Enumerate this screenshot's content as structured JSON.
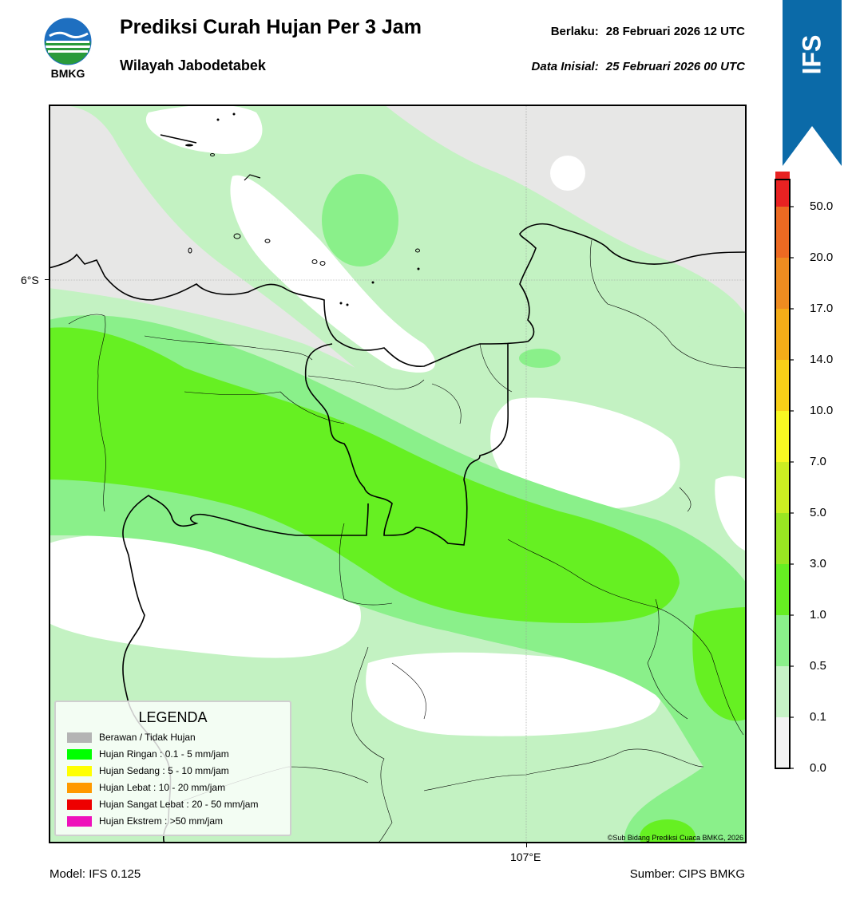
{
  "header": {
    "title": "Prediksi Curah Hujan Per 3 Jam",
    "region": "Wilayah Jabodetabek",
    "valid_label": "Berlaku:",
    "valid_time": "28 Februari 2026 12 UTC",
    "init_label": "Data Inisial:",
    "init_time": "25 Februari 2026 00 UTC"
  },
  "logo": {
    "text": "BMKG"
  },
  "badge": {
    "text": "IFS",
    "color": "#0b6aa8"
  },
  "map": {
    "lat_label": "6°S",
    "lon_label": "107°E",
    "copyright": "©Sub Bidang Prediksi Cuaca BMKG, 2026"
  },
  "legend": {
    "title": "LEGENDA",
    "items": [
      {
        "label": "Berawan / Tidak Hujan",
        "color": "#b4b4b4"
      },
      {
        "label": "Hujan Ringan : 0.1 - 5 mm/jam",
        "color": "#00ff00"
      },
      {
        "label": "Hujan Sedang : 5 - 10 mm/jam",
        "color": "#ffff00"
      },
      {
        "label": "Hujan Lebat : 10 - 20 mm/jam",
        "color": "#ff9900"
      },
      {
        "label": "Hujan Sangat Lebat : 20 - 50 mm/jam",
        "color": "#ee0000"
      },
      {
        "label": "Hujan Ekstrem : >50 mm/jam",
        "color": "#ee11bb"
      }
    ]
  },
  "colorbar": {
    "ticks": [
      "0.0",
      "0.1",
      "0.5",
      "1.0",
      "3.0",
      "5.0",
      "7.0",
      "10.0",
      "14.0",
      "17.0",
      "20.0",
      "50.0"
    ],
    "colors": [
      "#f2f2f2",
      "#c6f2c6",
      "#8af08a",
      "#66ee22",
      "#99e622",
      "#ccee22",
      "#f8f822",
      "#f8d018",
      "#f4ac18",
      "#ee8c20",
      "#ec6a22",
      "#e82222",
      "#e020c0"
    ]
  },
  "footer": {
    "model": "Model: IFS 0.125",
    "source": "Sumber: CIPS BMKG"
  }
}
